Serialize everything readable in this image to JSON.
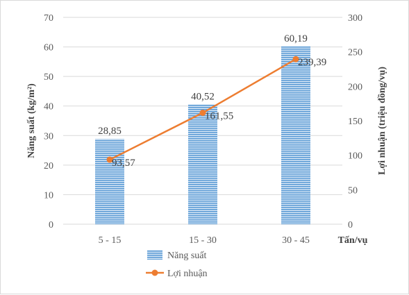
{
  "chart_data": {
    "type": "bar",
    "categories": [
      "5 - 15",
      "15 - 30",
      "30 - 45"
    ],
    "x_unit_label": "Tấn/vụ",
    "series": [
      {
        "name": "Năng suất",
        "type": "bar",
        "axis": "left",
        "values": [
          28.85,
          40.52,
          60.19
        ],
        "labels": [
          "28,85",
          "40,52",
          "60,19"
        ],
        "color": "#5b9bd5"
      },
      {
        "name": "Lợi nhuận",
        "type": "line",
        "axis": "right",
        "values": [
          93.57,
          161.55,
          239.39
        ],
        "labels": [
          "93,57",
          "161,55",
          "239,39"
        ],
        "color": "#ed7d31"
      }
    ],
    "ylabel": "Năng suất (kg/m²)",
    "y2label": "Lợi nhuận (triệu đồng/vụ)",
    "ylim": [
      0,
      70
    ],
    "y2lim": [
      0,
      300
    ],
    "yticks": [
      "0",
      "10",
      "20",
      "30",
      "40",
      "50",
      "60",
      "70"
    ],
    "y2ticks": [
      "0",
      "50",
      "100",
      "150",
      "200",
      "250",
      "300"
    ],
    "grid": "horizontal",
    "legend_position": "bottom"
  }
}
